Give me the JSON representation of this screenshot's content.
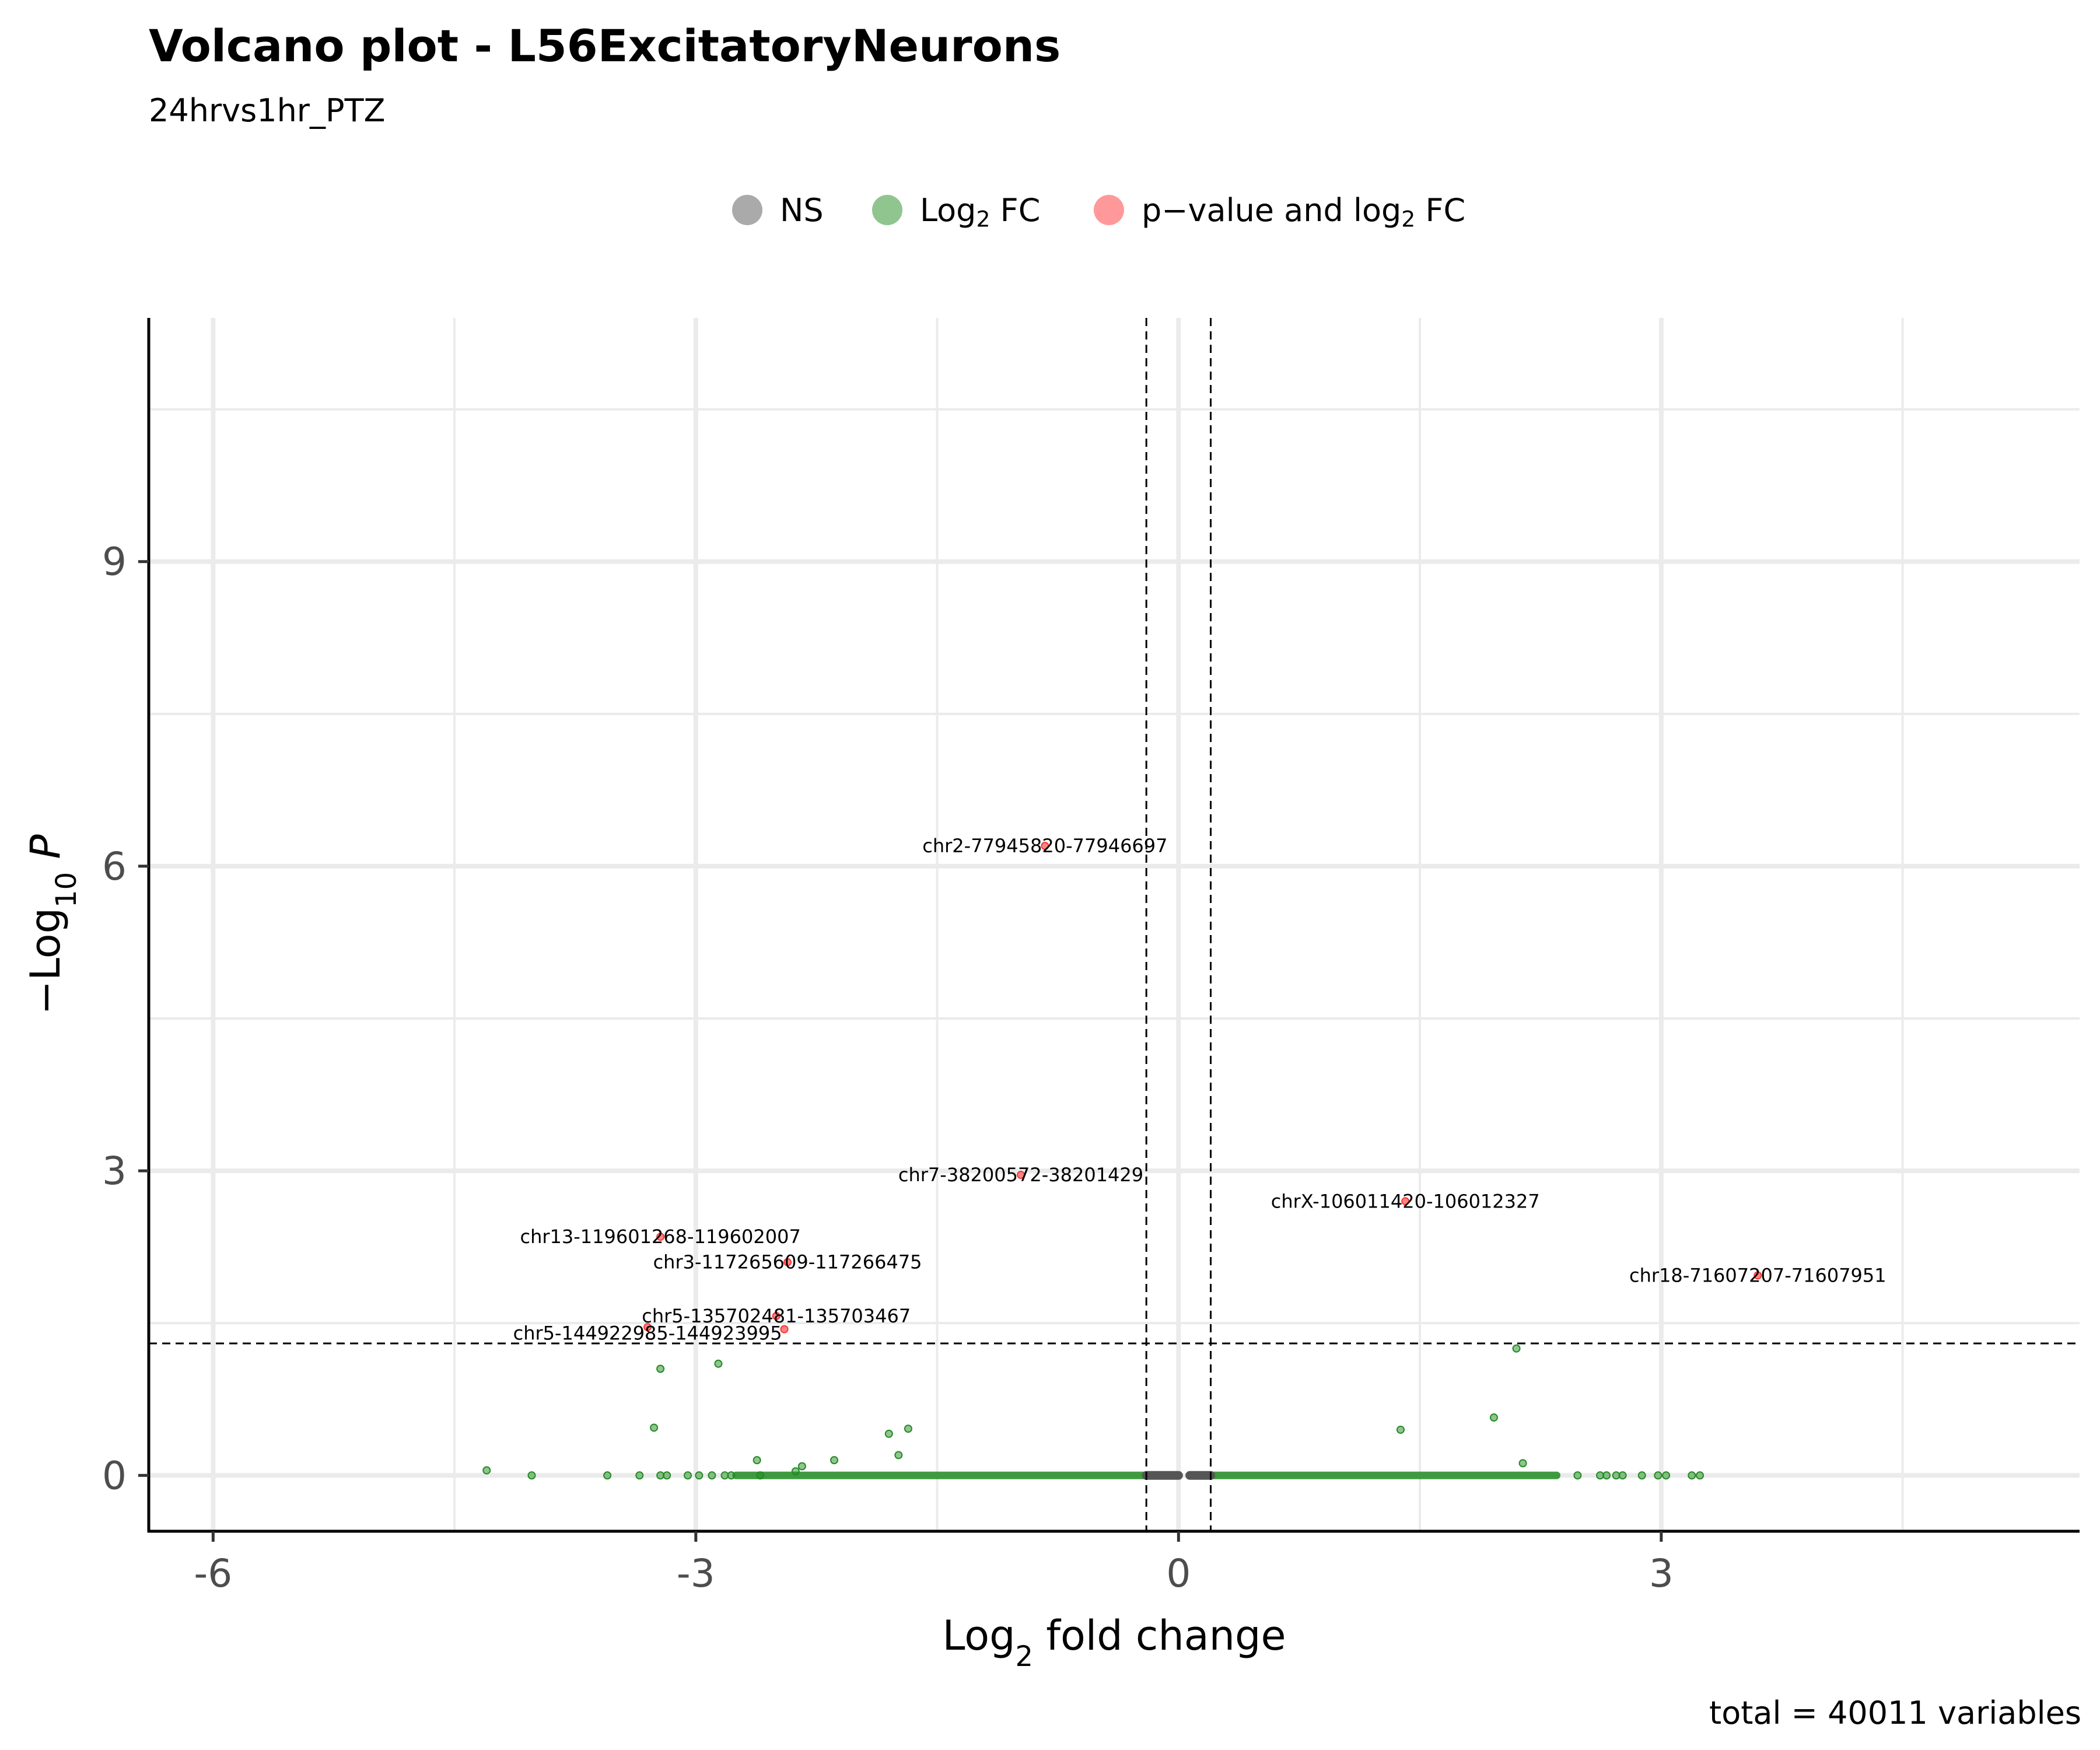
{
  "chart_data": {
    "type": "scatter",
    "title": "Volcano plot - L56ExcitatoryNeurons",
    "subtitle": "24hrvs1hr_PTZ",
    "caption": "total = 40011 variables",
    "xlabel": "Log2 fold change",
    "ylabel": "−Log10 P",
    "xlim": [
      -6.4,
      5.6
    ],
    "ylim": [
      -0.55,
      11.4
    ],
    "x_ticks": [
      -6,
      -3,
      0,
      3
    ],
    "x_tick_labels": [
      "-6",
      "-3",
      "0",
      "3"
    ],
    "y_ticks": [
      0,
      3,
      6,
      9
    ],
    "y_tick_labels": [
      "0",
      "3",
      "6",
      "9"
    ],
    "x_minor_gridlines": [
      -4.5,
      -1.5,
      1.5,
      4.5
    ],
    "y_minor_gridlines": [
      1.5,
      4.5,
      7.5,
      10.5
    ],
    "grid": true,
    "legend_position": "top",
    "thresholds": {
      "fc_cutoff": [
        -0.2,
        0.2
      ],
      "p_cutoff": 1.3
    },
    "colors": {
      "NS": "#555555",
      "log2fc": "#228b22",
      "sig": "#ff3333"
    },
    "legend": [
      "NS",
      "Log2 FC",
      "p−value and log2 FC"
    ],
    "series": [
      {
        "name": "NS",
        "dense_ranges": [
          [
            -0.2,
            0
          ],
          [
            0.07,
            0.2
          ]
        ],
        "points": []
      },
      {
        "name": "Log2 FC",
        "dense_ranges": [
          [
            -2.75,
            -0.2
          ],
          [
            0.2,
            2.35
          ]
        ],
        "points": [
          [
            -4.3,
            0.05
          ],
          [
            -4.02,
            0.0
          ],
          [
            -3.55,
            0.0
          ],
          [
            -3.35,
            0.0
          ],
          [
            -3.22,
            1.05
          ],
          [
            -3.26,
            0.47
          ],
          [
            -3.22,
            0.0
          ],
          [
            -3.18,
            0.0
          ],
          [
            -3.05,
            0.0
          ],
          [
            -2.98,
            0.0
          ],
          [
            -2.9,
            0.0
          ],
          [
            -2.86,
            1.1
          ],
          [
            -2.82,
            0.0
          ],
          [
            -2.78,
            0.0
          ],
          [
            -2.62,
            0.15
          ],
          [
            -2.6,
            0.0
          ],
          [
            -2.38,
            0.04
          ],
          [
            -2.34,
            0.09
          ],
          [
            -2.14,
            0.15
          ],
          [
            -1.8,
            0.41
          ],
          [
            -1.74,
            0.2
          ],
          [
            -1.68,
            0.46
          ],
          [
            1.38,
            0.45
          ],
          [
            1.96,
            0.57
          ],
          [
            2.1,
            1.25
          ],
          [
            2.14,
            0.12
          ],
          [
            2.48,
            0.0
          ],
          [
            2.62,
            0.0
          ],
          [
            2.66,
            0.0
          ],
          [
            2.72,
            0.0
          ],
          [
            2.76,
            0.0
          ],
          [
            2.88,
            0.0
          ],
          [
            2.98,
            0.0
          ],
          [
            3.03,
            0.0
          ],
          [
            3.19,
            0.0
          ],
          [
            3.24,
            0.0
          ]
        ]
      },
      {
        "name": "p−value and log2 FC",
        "points": [
          [
            -0.83,
            6.2
          ],
          [
            -0.98,
            2.96
          ],
          [
            1.41,
            2.7
          ],
          [
            3.6,
            1.97
          ],
          [
            -3.22,
            2.35
          ],
          [
            -2.43,
            2.1
          ],
          [
            -2.5,
            1.57
          ],
          [
            -3.3,
            1.46
          ],
          [
            -2.45,
            1.44
          ]
        ]
      }
    ],
    "labels": [
      {
        "text": "chr2-77945820-77946697",
        "x": -0.83,
        "y": 6.2
      },
      {
        "text": "chr7-38200572-38201429",
        "x": -0.98,
        "y": 2.96
      },
      {
        "text": "chrX-106011420-106012327",
        "x": 1.41,
        "y": 2.7
      },
      {
        "text": "chr18-71607207-71607951",
        "x": 3.6,
        "y": 1.97
      },
      {
        "text": "chr13-119601268-119602007",
        "x": -3.22,
        "y": 2.35
      },
      {
        "text": "chr3-117265609-117266475",
        "x": -2.43,
        "y": 2.1
      },
      {
        "text": "chr5-135702481-135703467",
        "x": -2.5,
        "y": 1.57
      },
      {
        "text": "chr5-144922985-144923995",
        "x": -3.3,
        "y": 1.4
      }
    ]
  }
}
